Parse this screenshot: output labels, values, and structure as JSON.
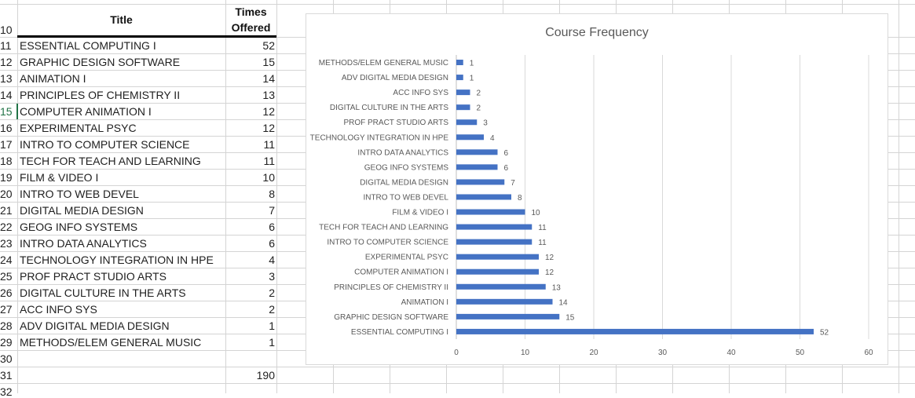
{
  "table": {
    "header_row_number": "10",
    "headers": {
      "title": "Title",
      "times_offered_line1": "Times",
      "times_offered_line2": "Offered"
    },
    "rows": [
      {
        "row": "11",
        "title": "ESSENTIAL COMPUTING I",
        "value": "52"
      },
      {
        "row": "12",
        "title": "GRAPHIC DESIGN SOFTWARE",
        "value": "15"
      },
      {
        "row": "13",
        "title": "ANIMATION I",
        "value": "14"
      },
      {
        "row": "14",
        "title": "PRINCIPLES OF CHEMISTRY II",
        "value": "13"
      },
      {
        "row": "15",
        "title": "COMPUTER ANIMATION I",
        "value": "12"
      },
      {
        "row": "16",
        "title": "EXPERIMENTAL PSYC",
        "value": "12"
      },
      {
        "row": "17",
        "title": "INTRO TO COMPUTER SCIENCE",
        "value": "11"
      },
      {
        "row": "18",
        "title": "TECH FOR TEACH AND LEARNING",
        "value": "11"
      },
      {
        "row": "19",
        "title": "FILM & VIDEO I",
        "value": "10"
      },
      {
        "row": "20",
        "title": "INTRO TO WEB DEVEL",
        "value": "8"
      },
      {
        "row": "21",
        "title": "DIGITAL MEDIA DESIGN",
        "value": "7"
      },
      {
        "row": "22",
        "title": "GEOG INFO SYSTEMS",
        "value": "6"
      },
      {
        "row": "23",
        "title": "INTRO DATA ANALYTICS",
        "value": "6"
      },
      {
        "row": "24",
        "title": "TECHNOLOGY INTEGRATION IN HPE",
        "value": "4"
      },
      {
        "row": "25",
        "title": "PROF PRACT STUDIO ARTS",
        "value": "3"
      },
      {
        "row": "26",
        "title": "DIGITAL CULTURE IN THE ARTS",
        "value": "2"
      },
      {
        "row": "27",
        "title": "ACC INFO SYS",
        "value": "2"
      },
      {
        "row": "28",
        "title": "ADV DIGITAL MEDIA DESIGN",
        "value": "1"
      },
      {
        "row": "29",
        "title": "METHODS/ELEM GENERAL MUSIC",
        "value": "1"
      },
      {
        "row": "30",
        "title": "",
        "value": ""
      },
      {
        "row": "31",
        "title": "",
        "value": "190"
      },
      {
        "row": "32",
        "title": "",
        "value": ""
      }
    ]
  },
  "chart_data": {
    "type": "bar",
    "orientation": "horizontal",
    "title": "Course Frequency",
    "categories": [
      "ESSENTIAL COMPUTING I",
      "GRAPHIC DESIGN SOFTWARE",
      "ANIMATION I",
      "PRINCIPLES OF CHEMISTRY II",
      "COMPUTER ANIMATION I",
      "EXPERIMENTAL PSYC",
      "INTRO TO COMPUTER SCIENCE",
      "TECH FOR TEACH AND LEARNING",
      "FILM & VIDEO I",
      "INTRO TO WEB DEVEL",
      "DIGITAL MEDIA DESIGN",
      "GEOG INFO SYSTEMS",
      "INTRO DATA ANALYTICS",
      "TECHNOLOGY INTEGRATION IN HPE",
      "PROF PRACT STUDIO ARTS",
      "DIGITAL CULTURE IN THE ARTS",
      "ACC INFO SYS",
      "ADV DIGITAL MEDIA DESIGN",
      "METHODS/ELEM GENERAL MUSIC"
    ],
    "values": [
      52,
      15,
      14,
      13,
      12,
      12,
      11,
      11,
      10,
      8,
      7,
      6,
      6,
      4,
      3,
      2,
      2,
      1,
      1
    ],
    "xlim": [
      0,
      60
    ],
    "xticks": [
      "0",
      "10",
      "20",
      "30",
      "40",
      "50",
      "60"
    ],
    "grid": true,
    "bar_color": "#4472c4",
    "xlabel": "",
    "ylabel": ""
  }
}
